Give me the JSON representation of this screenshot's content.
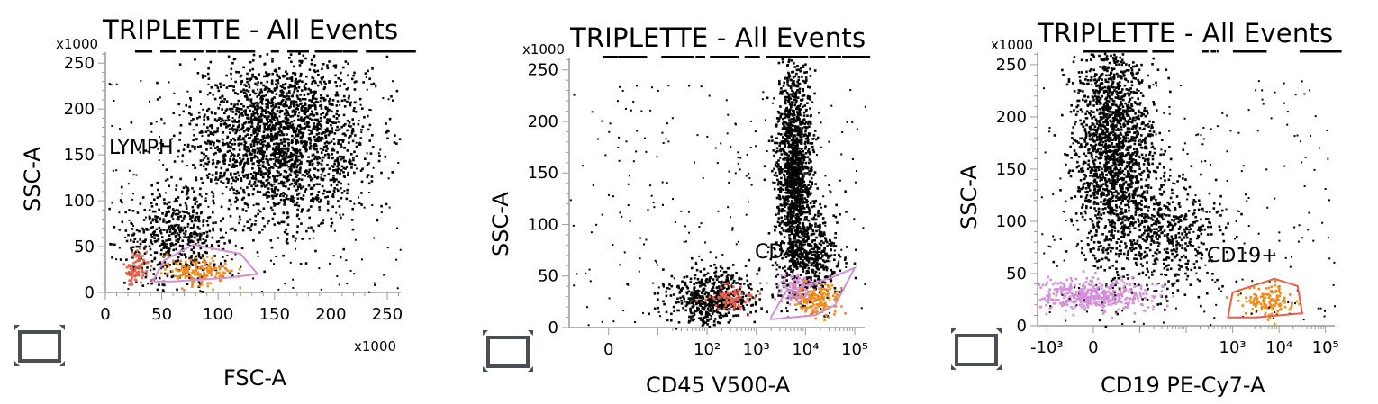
{
  "chart_data": [
    {
      "type": "scatter",
      "title": "TRIPLETTE - All Events",
      "xlabel": "FSC-A",
      "ylabel": "SSC-A",
      "x_multiplier": "x1000",
      "y_multiplier": "x1000",
      "xlim": [
        0,
        262
      ],
      "ylim": [
        0,
        262
      ],
      "x_ticks": [
        "0",
        "50",
        "100",
        "150",
        "200",
        "250"
      ],
      "y_ticks": [
        "0",
        "50",
        "100",
        "150",
        "200",
        "250"
      ],
      "x_scale": "linear",
      "gates": [
        {
          "label": "LYMPH",
          "shape": "polygon",
          "color": "#d48fd9",
          "vertices": [
            [
              42,
              12
            ],
            [
              52,
              35
            ],
            [
              78,
              52
            ],
            [
              120,
              42
            ],
            [
              135,
              20
            ],
            [
              108,
              16
            ],
            [
              60,
              12
            ]
          ]
        }
      ],
      "series": [
        {
          "color": "#000000",
          "clusters": [
            {
              "cx": 155,
              "cy": 170,
              "sx": 38,
              "sy": 45,
              "n": 2200
            },
            {
              "cx": 60,
              "cy": 60,
              "sx": 25,
              "sy": 28,
              "n": 500
            }
          ]
        },
        {
          "color": "#e8604a",
          "clusters": [
            {
              "cx": 27,
              "cy": 30,
              "sx": 5,
              "sy": 8,
              "n": 90
            }
          ]
        },
        {
          "color": "#f28a1a",
          "clusters": [
            {
              "cx": 80,
              "cy": 25,
              "sx": 16,
              "sy": 6,
              "n": 170
            }
          ]
        }
      ]
    },
    {
      "type": "scatter",
      "title": "TRIPLETTE - All Events",
      "xlabel": "CD45 V500-A",
      "ylabel": "SSC-A",
      "y_multiplier": "x1000",
      "xlim": [
        -0.8,
        5.2
      ],
      "ylim": [
        0,
        262
      ],
      "x_ticks": [
        "0",
        "10²",
        "10³",
        "10⁴",
        "10⁵"
      ],
      "y_ticks": [
        "0",
        "50",
        "100",
        "150",
        "200",
        "250"
      ],
      "x_scale": "biexponential",
      "gates": [
        {
          "label": "CD45+",
          "shape": "polygon",
          "color": "#d48fd9",
          "vertices": [
            [
              3.3,
              10
            ],
            [
              3.6,
              35
            ],
            [
              4.5,
              48
            ],
            [
              5.0,
              58
            ],
            [
              4.6,
              22
            ],
            [
              4.2,
              12
            ],
            [
              3.3,
              8
            ]
          ]
        }
      ],
      "series": [
        {
          "color": "#000000",
          "clusters": [
            {
              "cx": 3.75,
              "cy": 150,
              "sx": 0.18,
              "sy": 55,
              "n": 1500
            },
            {
              "cx": 4.2,
              "cy": 70,
              "sx": 0.25,
              "sy": 22,
              "n": 300
            },
            {
              "cx": 2.1,
              "cy": 30,
              "sx": 0.45,
              "sy": 14,
              "n": 550
            }
          ]
        },
        {
          "color": "#e8604a",
          "clusters": [
            {
              "cx": 2.5,
              "cy": 30,
              "sx": 0.2,
              "sy": 6,
              "n": 90
            }
          ]
        },
        {
          "color": "#d48fd9",
          "clusters": [
            {
              "cx": 3.8,
              "cy": 38,
              "sx": 0.2,
              "sy": 8,
              "n": 120
            }
          ]
        },
        {
          "color": "#f28a1a",
          "clusters": [
            {
              "cx": 4.2,
              "cy": 28,
              "sx": 0.25,
              "sy": 8,
              "n": 160
            }
          ]
        }
      ]
    },
    {
      "type": "scatter",
      "title": "TRIPLETTE - All Events",
      "xlabel": "CD19 PE-Cy7-A",
      "ylabel": "SSC-A",
      "y_multiplier": "x1000",
      "xlim": [
        -1.2,
        5.2
      ],
      "ylim": [
        0,
        262
      ],
      "x_ticks": [
        "-10³",
        "0",
        "10³",
        "10⁴",
        "10⁵"
      ],
      "y_ticks": [
        "0",
        "50",
        "100",
        "150",
        "200",
        "250"
      ],
      "x_scale": "biexponential",
      "gates": [
        {
          "label": "CD19+",
          "shape": "polygon",
          "color": "#e8604a",
          "vertices": [
            [
              2.9,
              8
            ],
            [
              3.0,
              32
            ],
            [
              3.9,
              45
            ],
            [
              4.4,
              38
            ],
            [
              4.5,
              12
            ],
            [
              3.5,
              8
            ]
          ]
        }
      ],
      "series": [
        {
          "color": "#000000",
          "clusters": [
            {
              "cx": 0.4,
              "cy": 170,
              "sx": 0.4,
              "sy": 55,
              "n": 1800
            },
            {
              "cx": 1.6,
              "cy": 90,
              "sx": 0.6,
              "sy": 30,
              "n": 500
            }
          ]
        },
        {
          "color": "#d48fd9",
          "clusters": [
            {
              "cx": 0.0,
              "cy": 30,
              "sx": 0.65,
              "sy": 7,
              "n": 450
            }
          ]
        },
        {
          "color": "#f28a1a",
          "clusters": [
            {
              "cx": 3.8,
              "cy": 25,
              "sx": 0.3,
              "sy": 7,
              "n": 130
            }
          ]
        }
      ]
    }
  ]
}
